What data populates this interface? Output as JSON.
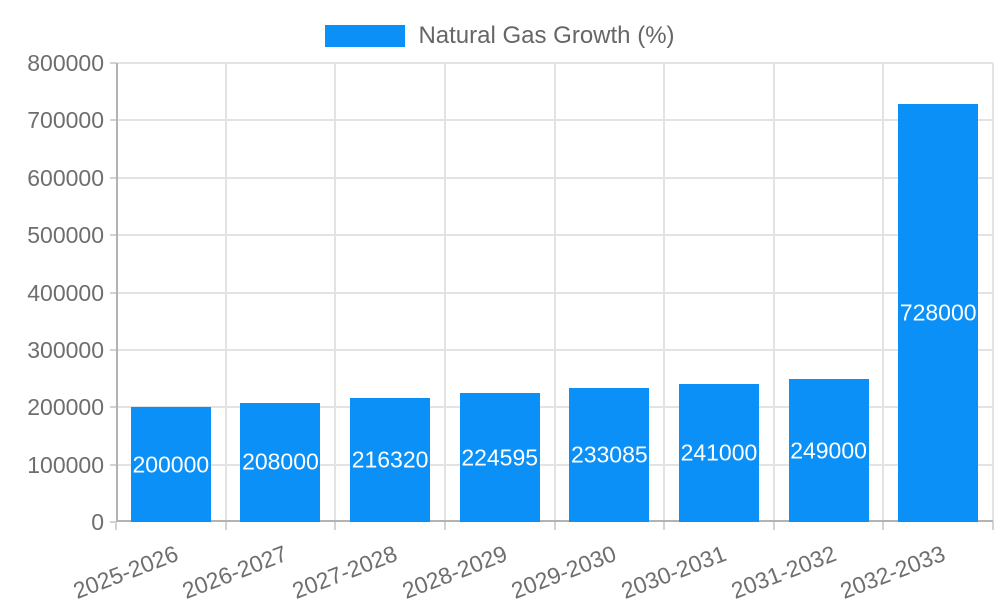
{
  "legend": {
    "label": "Natural Gas Growth (%)",
    "swatch_color": "#0a90f7"
  },
  "chart_data": {
    "type": "bar",
    "title": "",
    "xlabel": "",
    "ylabel": "",
    "categories": [
      "2025-2026",
      "2026-2027",
      "2027-2028",
      "2028-2029",
      "2029-2030",
      "2030-2031",
      "2031-2032",
      "2032-2033"
    ],
    "series": [
      {
        "name": "Natural Gas Growth (%)",
        "values": [
          200000,
          208000,
          216320,
          224595,
          233085,
          241000,
          249000,
          728000
        ]
      }
    ],
    "value_labels": [
      "200000",
      "208000",
      "216320",
      "224595",
      "233085",
      "241000",
      "249000",
      "728000"
    ],
    "ylim": [
      0,
      800000
    ],
    "ytick_step": 100000,
    "ytick_labels": [
      "0",
      "100000",
      "200000",
      "300000",
      "400000",
      "500000",
      "600000",
      "700000",
      "800000"
    ],
    "grid": true,
    "legend_position": "top-center",
    "bar_color": "#0a90f7"
  },
  "colors": {
    "bar": "#0a90f7",
    "grid": "#e3e3e3",
    "axis": "#b3b3b3",
    "tick_text": "#6e6e6e",
    "legend_text": "#666666",
    "value_label_text": "#ffffff",
    "background": "#ffffff"
  }
}
